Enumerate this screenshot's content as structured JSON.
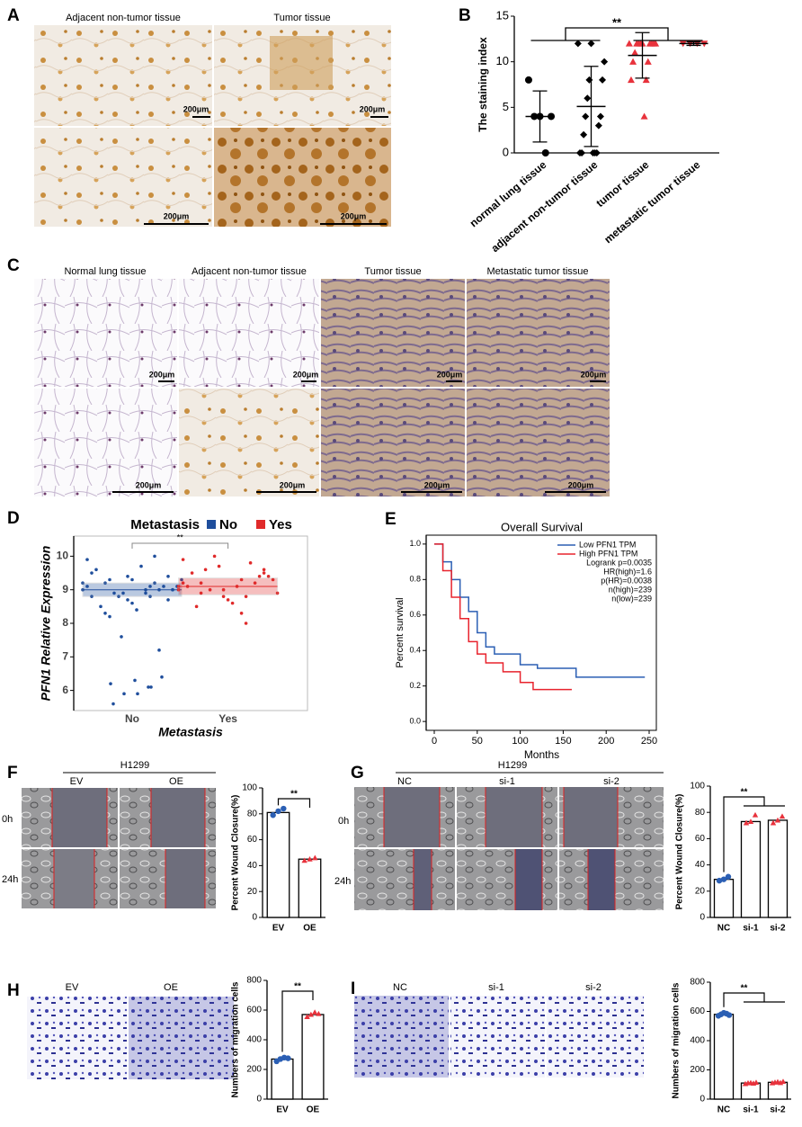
{
  "figure": {
    "letters": [
      "A",
      "B",
      "C",
      "D",
      "E",
      "F",
      "G",
      "H",
      "I"
    ],
    "a": {
      "columns": [
        "Adjacent non-tumor tissue",
        "Tumor tissue"
      ],
      "scale": "200μm"
    },
    "c": {
      "columns": [
        "Normal lung tissue",
        "Adjacent non-tumor tissue",
        "Tumor tissue",
        "Metastatic tumor tissue"
      ],
      "scale": "200μm"
    },
    "f": {
      "cell_line": "H1299",
      "groups": [
        "EV",
        "OE"
      ],
      "times": [
        "0h",
        "24h"
      ]
    },
    "g": {
      "cell_line": "H1299",
      "groups": [
        "NC",
        "si-1",
        "si-2"
      ],
      "times": [
        "0h",
        "24h"
      ]
    },
    "h": {
      "groups": [
        "EV",
        "OE"
      ]
    },
    "i": {
      "groups": [
        "NC",
        "si-1",
        "si-2"
      ]
    }
  },
  "chart_data": [
    {
      "type": "scatter",
      "ylabel": "The staining index",
      "annotation": "**",
      "categories": [
        "normal lung tissue",
        "adjacent non-tumor tissue",
        "tumor tissue",
        "metastatic tumor tissue"
      ],
      "colors": [
        "#000000",
        "#000000",
        "#e8323c",
        "#e8323c"
      ],
      "markers": [
        "circle",
        "diamond",
        "triangle",
        "triangle-down"
      ],
      "means": [
        4,
        5.1,
        10.7,
        12
      ],
      "sd": [
        2.8,
        4.4,
        2.5,
        0.2
      ],
      "points": [
        [
          8,
          4,
          4,
          4,
          0
        ],
        [
          12,
          12,
          10,
          8,
          8,
          6,
          4,
          4,
          3,
          2,
          0,
          0,
          0,
          0,
          0
        ],
        [
          12,
          12,
          12,
          12,
          12,
          12,
          12,
          12,
          12,
          11,
          10,
          10,
          8,
          8,
          4
        ],
        [
          12,
          12,
          12,
          12
        ]
      ],
      "ylim": [
        0,
        15
      ],
      "yticks": [
        0,
        5,
        10,
        15
      ]
    },
    {
      "type": "scatter",
      "legend_title": "Metastasis",
      "xlabel": "Metastasis",
      "ylabel": "PFN1 Relative Expression",
      "annotation": "**",
      "categories": [
        "No",
        "Yes"
      ],
      "series": [
        {
          "name": "No",
          "color": "#1f4e9c",
          "q1": 8.8,
          "median": 9.0,
          "q3": 9.2,
          "values": [
            9.0,
            8.9,
            9.2,
            8.7,
            9.4,
            9.1,
            8.8,
            9.3,
            9.0,
            8.6,
            9.5,
            9.2,
            8.9,
            9.1,
            8.4,
            9.6,
            9.0,
            8.8,
            9.3,
            9.7,
            8.5,
            9.1,
            8.9,
            9.2,
            9.0,
            8.3,
            9.4,
            8.7,
            9.9,
            9.1,
            8.2,
            9.0,
            9.3,
            8.8,
            10.0,
            7.6,
            7.2,
            6.3,
            6.2,
            6.1,
            5.9,
            6.4,
            5.9,
            5.6,
            6.1
          ]
        },
        {
          "name": "Yes",
          "color": "#e02a2a",
          "q1": 8.85,
          "median": 9.1,
          "q3": 9.35,
          "values": [
            9.1,
            9.3,
            8.9,
            9.5,
            9.0,
            9.2,
            8.8,
            9.6,
            9.4,
            8.7,
            9.1,
            9.8,
            9.0,
            9.3,
            8.6,
            9.5,
            9.2,
            10.0,
            8.9,
            9.1,
            8.5,
            9.4,
            9.7,
            9.0,
            8.3,
            9.2,
            9.6,
            8.8,
            9.9,
            8.0
          ]
        }
      ],
      "ylim": [
        5.4,
        10.6
      ],
      "yticks": [
        6,
        7,
        8,
        9,
        10
      ]
    },
    {
      "type": "line",
      "title": "Overall Survival",
      "xlabel": "Months",
      "ylabel": "Percent survival",
      "stats": [
        "Logrank p=0.0035",
        "HR(high)=1.6",
        "p(HR)=0.0038",
        "n(high)=239",
        "n(low)=239"
      ],
      "series": [
        {
          "name": "Low PFN1 TPM",
          "color": "#2b5fb4",
          "x": [
            0,
            10,
            20,
            30,
            40,
            50,
            60,
            70,
            100,
            120,
            165,
            245
          ],
          "values": [
            1,
            0.9,
            0.8,
            0.7,
            0.62,
            0.5,
            0.42,
            0.38,
            0.32,
            0.3,
            0.25,
            0.25
          ]
        },
        {
          "name": "High PFN1 TPM",
          "color": "#e8232d",
          "x": [
            0,
            10,
            20,
            30,
            40,
            50,
            60,
            80,
            100,
            115,
            160
          ],
          "values": [
            1,
            0.85,
            0.7,
            0.58,
            0.45,
            0.38,
            0.33,
            0.28,
            0.22,
            0.18,
            0.18
          ]
        }
      ],
      "xlim": [
        0,
        250
      ],
      "xticks": [
        0,
        50,
        100,
        150,
        200,
        250
      ],
      "ylim": [
        -0.05,
        1.05
      ],
      "yticks": [
        {
          "value": 0,
          "label": "0.0"
        },
        0.2,
        0.4,
        0.6,
        0.8,
        {
          "value": 1,
          "label": "1.0"
        }
      ]
    },
    {
      "type": "bar",
      "ylabel": "Percent Wound Closure(%)",
      "annotation": "**",
      "categories": [
        "EV",
        "OE"
      ],
      "values": [
        81,
        45
      ],
      "points": [
        [
          79,
          82,
          84
        ],
        [
          44,
          45,
          46
        ]
      ],
      "point_colors": [
        "#2b5fb4",
        "#e8323c"
      ],
      "ylim": [
        0,
        100
      ],
      "yticks": [
        0,
        20,
        40,
        60,
        80,
        100
      ]
    },
    {
      "type": "bar",
      "ylabel": "Percent Wound Closure(%)",
      "annotation": "**",
      "categories": [
        "NC",
        "si-1",
        "si-2"
      ],
      "values": [
        29,
        73,
        74
      ],
      "points": [
        [
          28,
          29,
          31
        ],
        [
          72,
          73,
          78
        ],
        [
          72,
          74,
          77
        ]
      ],
      "point_colors": [
        "#2b5fb4",
        "#e8323c",
        "#e8323c"
      ],
      "ylim": [
        0,
        100
      ],
      "yticks": [
        0,
        20,
        40,
        60,
        80,
        100
      ]
    },
    {
      "type": "bar",
      "ylabel": "Numbers of migration cells",
      "annotation": "**",
      "categories": [
        "EV",
        "OE"
      ],
      "values": [
        270,
        570
      ],
      "points": [
        [
          255,
          270,
          280,
          275
        ],
        [
          555,
          570,
          585,
          575
        ]
      ],
      "point_colors": [
        "#2b5fb4",
        "#e8323c"
      ],
      "ylim": [
        0,
        800
      ],
      "yticks": [
        0,
        200,
        400,
        600,
        800
      ]
    },
    {
      "type": "bar",
      "ylabel": "Numbers of migration cells",
      "annotation": "**",
      "categories": [
        "NC",
        "si-1",
        "si-2"
      ],
      "values": [
        580,
        110,
        115
      ],
      "points": [
        [
          570,
          580,
          590,
          585,
          575
        ],
        [
          105,
          110,
          112,
          108,
          114
        ],
        [
          110,
          115,
          118,
          112,
          120
        ]
      ],
      "point_colors": [
        "#2b5fb4",
        "#e8323c",
        "#e8323c"
      ],
      "ylim": [
        0,
        800
      ],
      "yticks": [
        0,
        200,
        400,
        600,
        800
      ]
    }
  ]
}
